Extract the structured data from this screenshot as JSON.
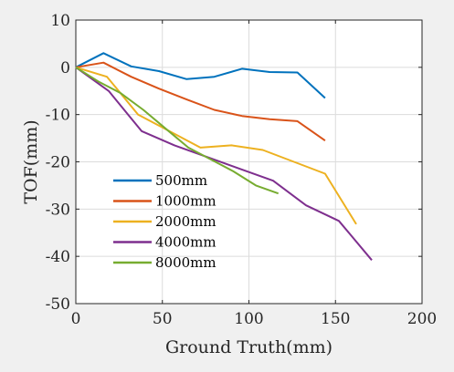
{
  "chart_data": {
    "type": "line",
    "xlabel": "Ground Truth(mm)",
    "ylabel": "TOF(mm)",
    "xlim": [
      0,
      200
    ],
    "ylim": [
      -50,
      10
    ],
    "xticks": [
      0,
      50,
      100,
      150,
      200
    ],
    "yticks": [
      10,
      0,
      -10,
      -20,
      -30,
      -40,
      -50
    ],
    "grid": true,
    "legend_position": "lower-left inside",
    "series": [
      {
        "name": "500mm",
        "color": "#0072BD",
        "x": [
          0,
          16,
          32,
          48,
          64,
          80,
          96,
          112,
          128,
          144
        ],
        "y": [
          0,
          3,
          0.2,
          -0.8,
          -2.5,
          -2,
          -0.3,
          -1,
          -1.1,
          -6.5
        ]
      },
      {
        "name": "1000mm",
        "color": "#D95319",
        "x": [
          0,
          16,
          32,
          48,
          64,
          80,
          96,
          112,
          128,
          144
        ],
        "y": [
          0,
          1,
          -2,
          -4.5,
          -6.8,
          -9,
          -10.3,
          -11,
          -11.4,
          -15.5
        ]
      },
      {
        "name": "2000mm",
        "color": "#EDB120",
        "x": [
          0,
          18,
          36,
          54,
          72,
          90,
          108,
          126,
          144,
          162
        ],
        "y": [
          0,
          -2,
          -10,
          -13.5,
          -17,
          -16.5,
          -17.5,
          -20,
          -22.5,
          -33.2
        ]
      },
      {
        "name": "4000mm",
        "color": "#7E2F8E",
        "x": [
          0,
          19,
          38,
          57,
          76,
          95,
          114,
          133,
          152,
          171
        ],
        "y": [
          0,
          -5,
          -13.5,
          -16.5,
          -19,
          -21.5,
          -24,
          -29.2,
          -32.5,
          -40.8
        ]
      },
      {
        "name": "8000mm",
        "color": "#77AC30",
        "x": [
          0,
          13,
          26,
          39,
          52,
          65,
          78,
          91,
          104,
          117
        ],
        "y": [
          0,
          -3,
          -5.5,
          -9,
          -13,
          -17,
          -19.5,
          -22,
          -25,
          -26.7
        ]
      }
    ]
  }
}
